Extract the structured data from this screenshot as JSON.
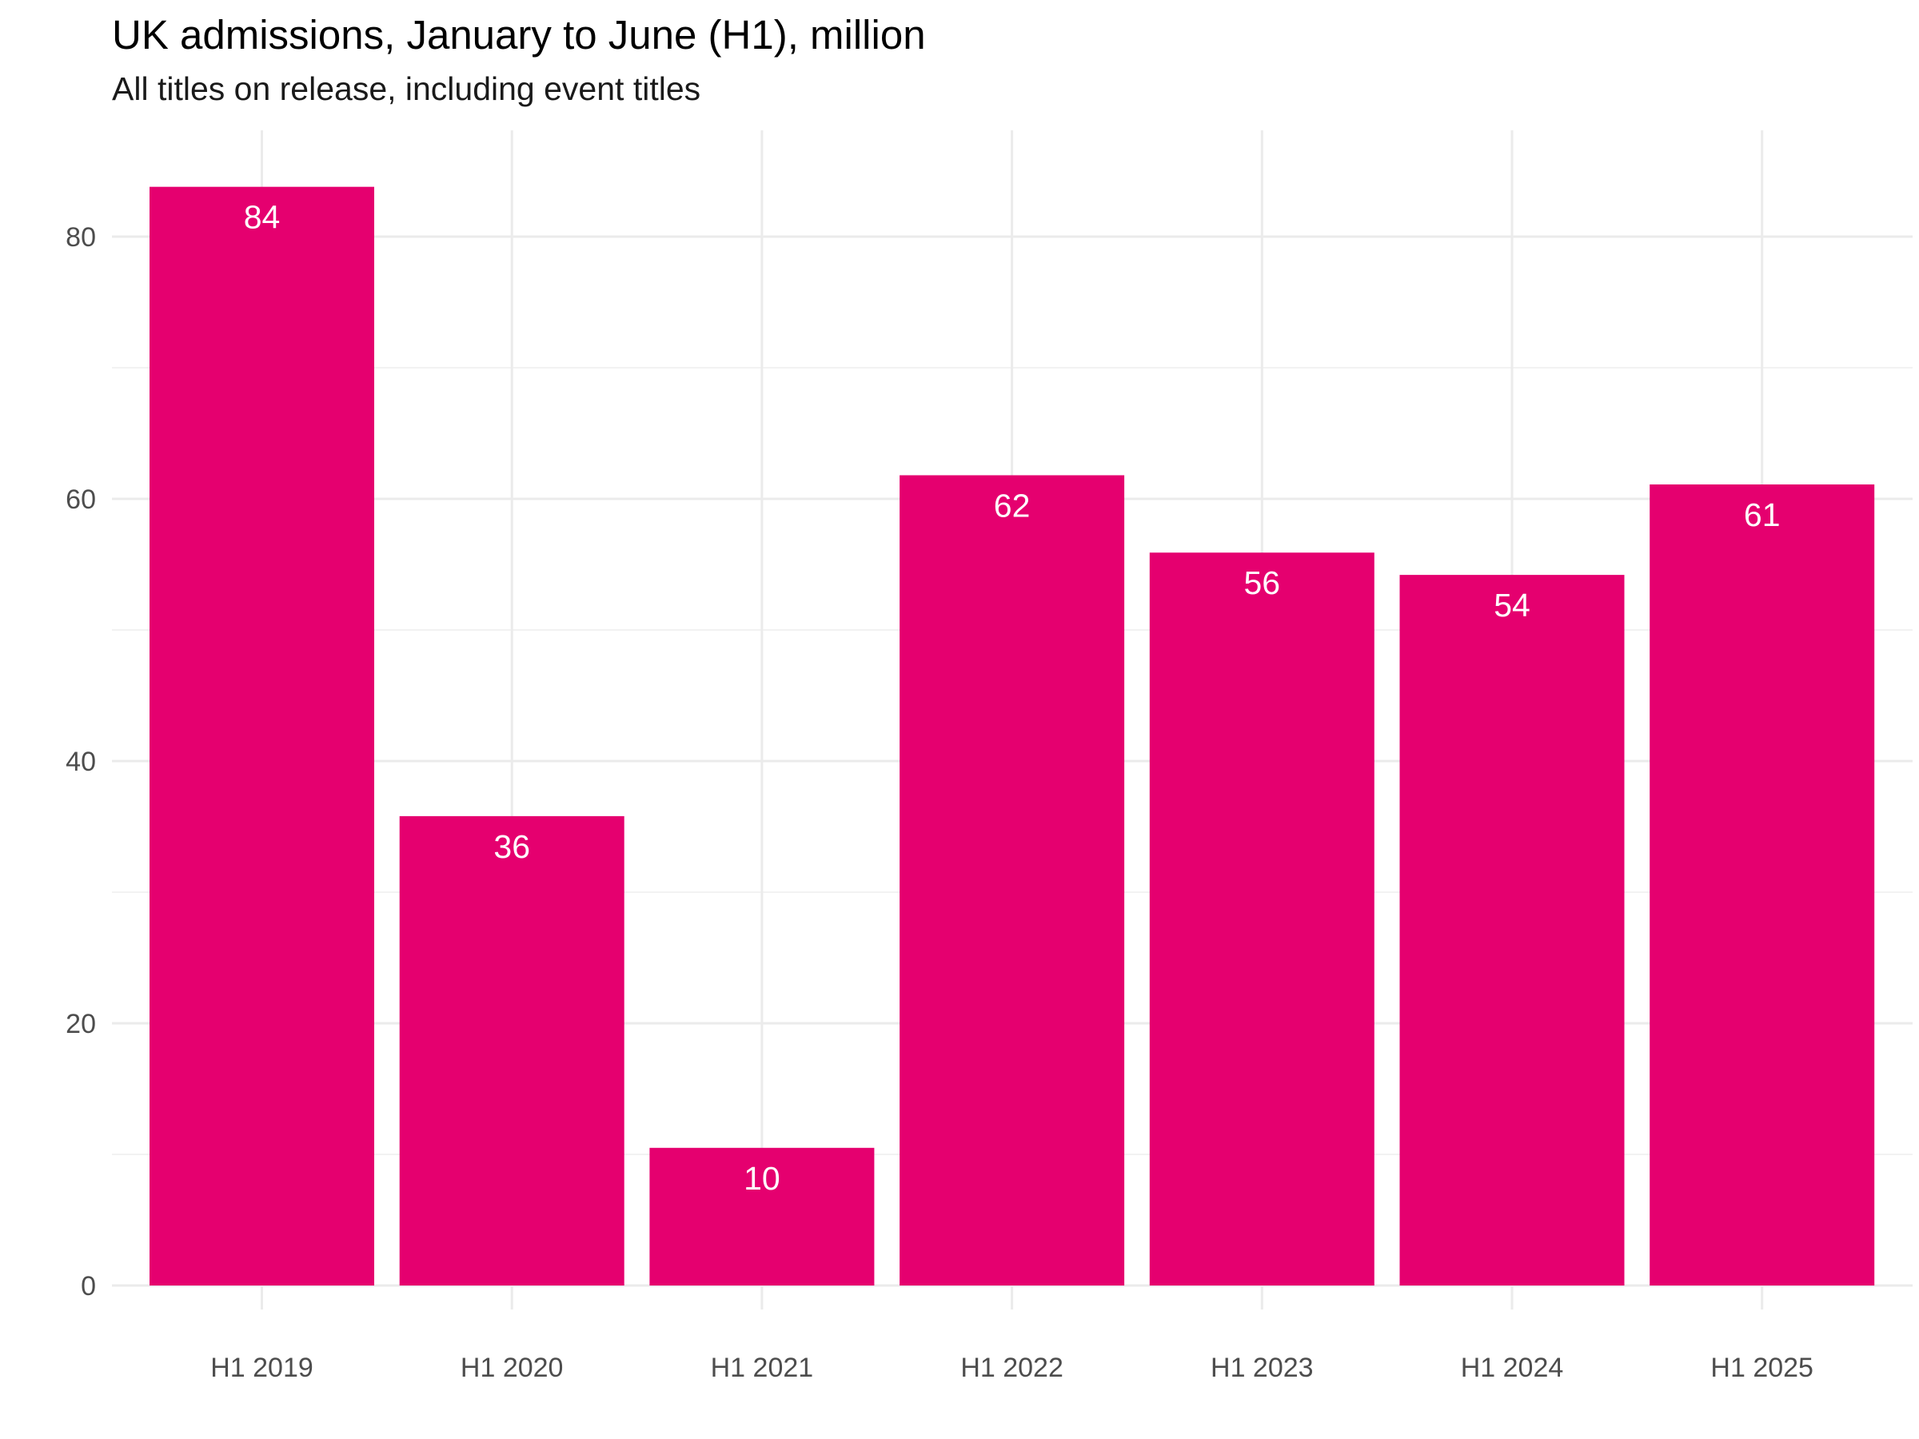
{
  "chart_data": {
    "type": "bar",
    "title": "UK admissions, January to June (H1), million",
    "subtitle": "All titles on release, including event titles",
    "xlabel": "",
    "ylabel": "",
    "categories": [
      "H1 2019",
      "H1 2020",
      "H1 2021",
      "H1 2022",
      "H1 2023",
      "H1 2024",
      "H1 2025"
    ],
    "values": [
      84,
      36,
      10,
      62,
      56,
      54,
      61
    ],
    "plotted_values": [
      83.8,
      35.8,
      10.5,
      61.8,
      55.9,
      54.2,
      61.1
    ],
    "data_labels": [
      "84",
      "36",
      "10",
      "62",
      "56",
      "54",
      "61"
    ],
    "ylim": [
      0,
      88
    ],
    "yticks": [
      0,
      20,
      40,
      60,
      80
    ],
    "ytick_labels": [
      "0",
      "20",
      "40",
      "60",
      "80"
    ],
    "grid": true,
    "legend": "none",
    "colors": {
      "bar": "#E5006F",
      "grid_major": "#EBEBEB",
      "grid_minor": "#F2F2F2",
      "tick_label": "#4D4D4D",
      "data_label": "#FFFFFF"
    }
  }
}
